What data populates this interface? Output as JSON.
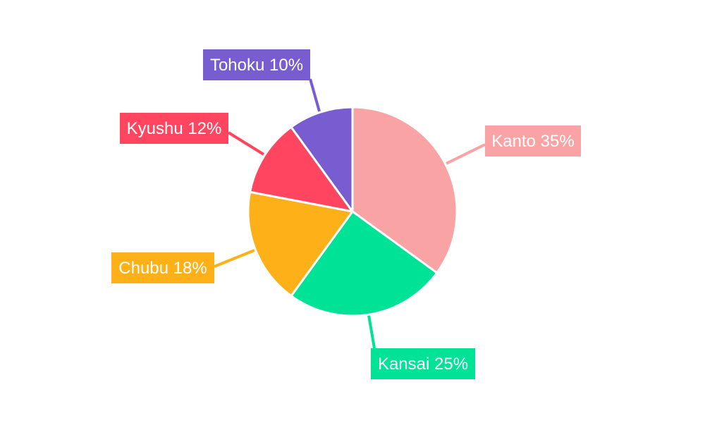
{
  "chart_data": {
    "type": "pie",
    "categories": [
      "Kanto",
      "Kansai",
      "Chubu",
      "Kyushu",
      "Tohoku"
    ],
    "values": [
      35,
      25,
      18,
      12,
      10
    ],
    "labels": [
      "Kanto 35%",
      "Kansai 25%",
      "Chubu 18%",
      "Kyushu 12%",
      "Tohoku 10%"
    ],
    "colors": [
      "#f9a3a4",
      "#00e396",
      "#feb019",
      "#ff4560",
      "#775dd0"
    ],
    "start_angle": "top, clockwise",
    "legend": "none"
  }
}
